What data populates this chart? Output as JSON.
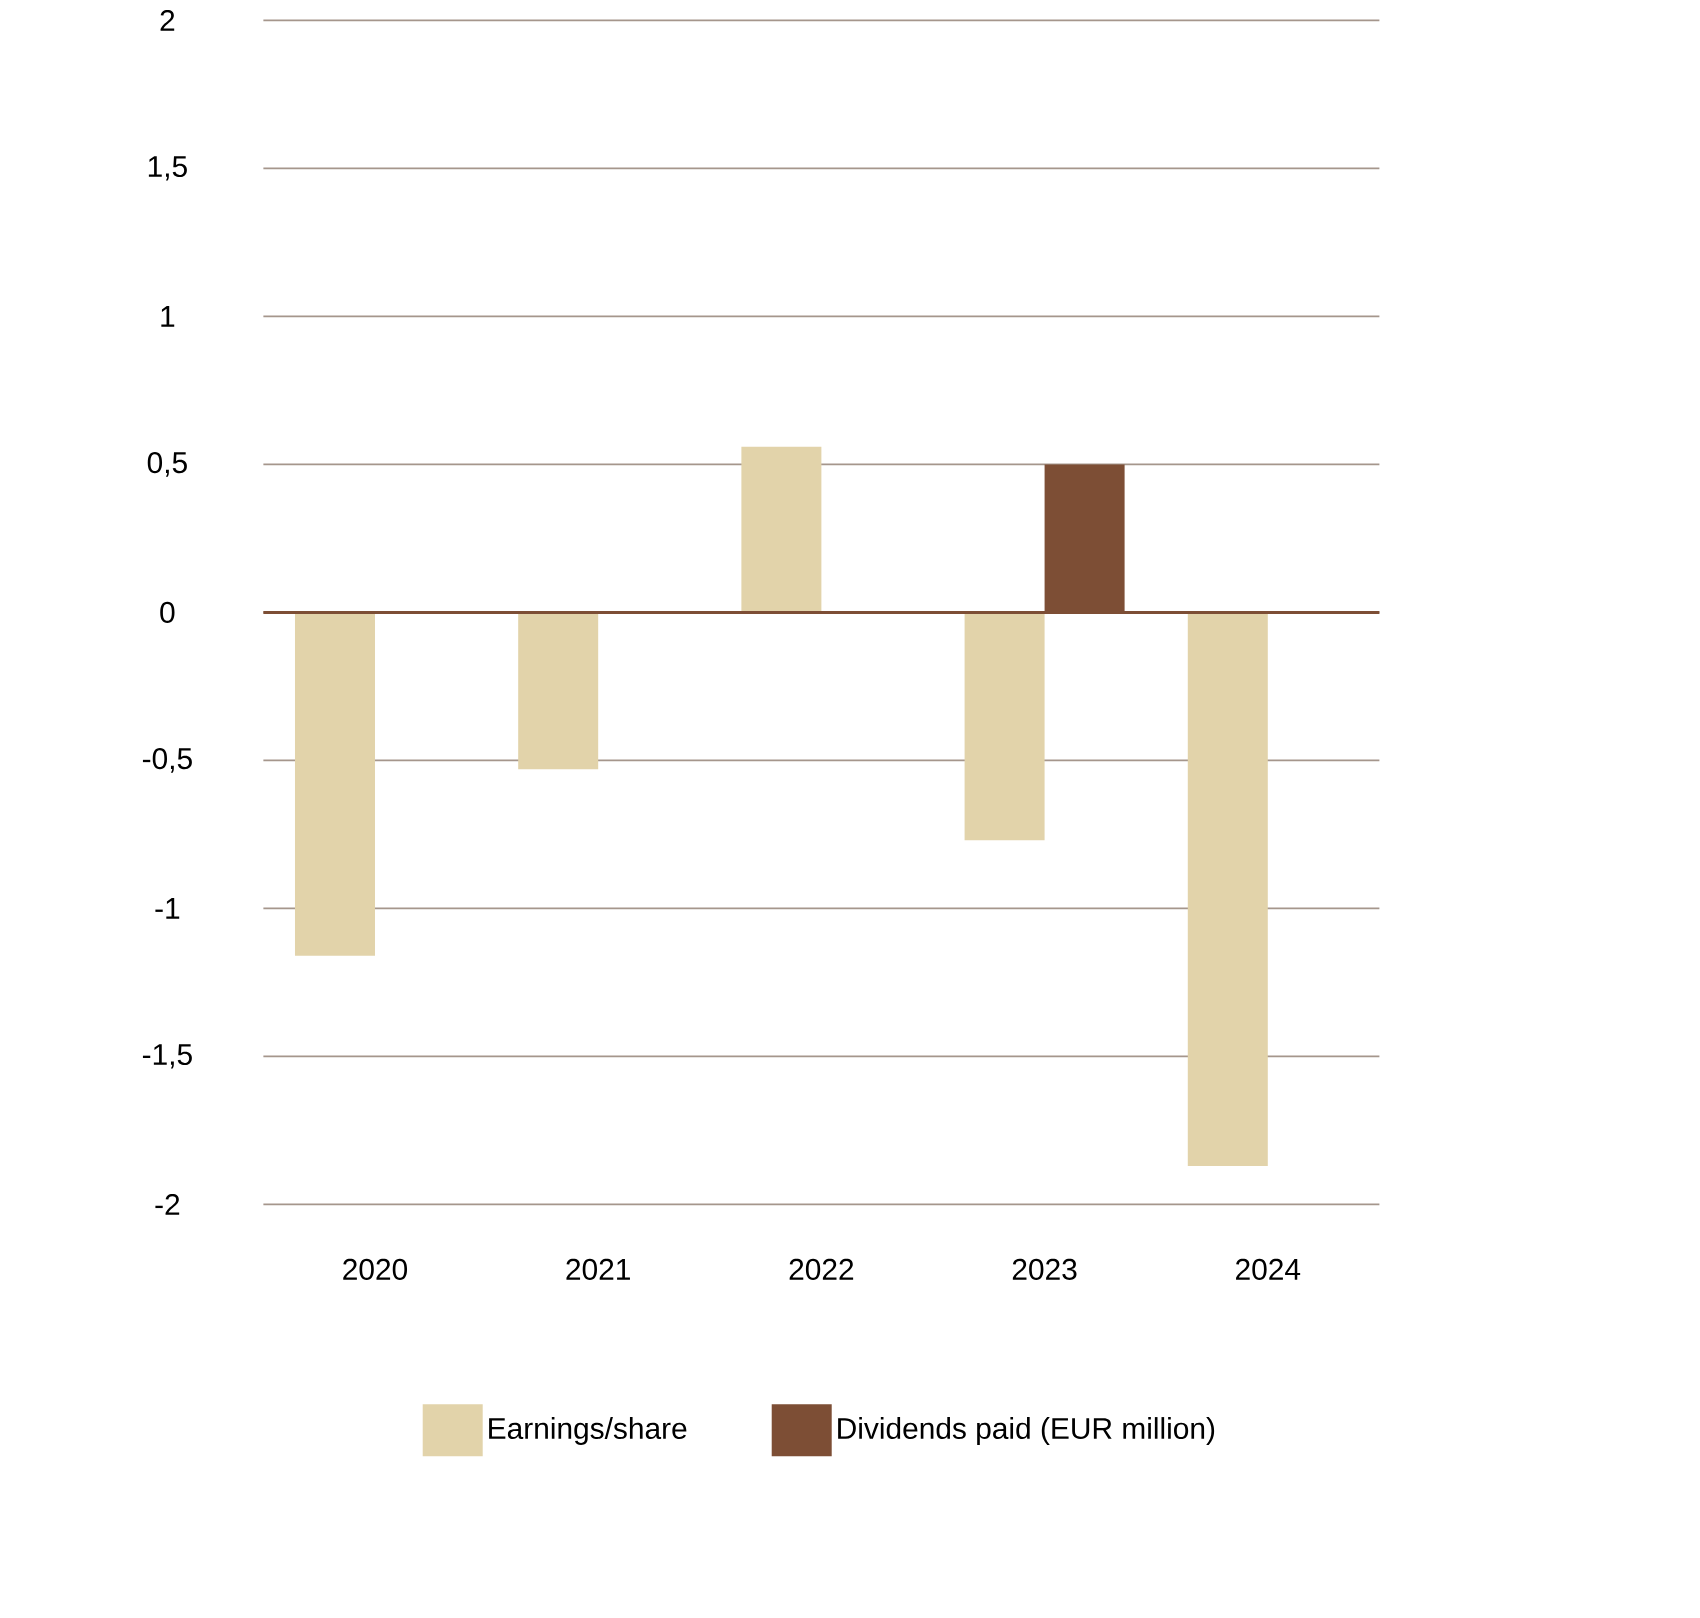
{
  "chart_data": {
    "type": "bar",
    "categories": [
      "2020",
      "2021",
      "2022",
      "2023",
      "2024"
    ],
    "series": [
      {
        "name": "Earnings/share",
        "color": "#e2d3aa",
        "values": [
          -1.16,
          -0.53,
          0.56,
          -0.77,
          -1.87
        ]
      },
      {
        "name": "Dividends paid (EUR million)",
        "color": "#7d4e35",
        "values": [
          null,
          null,
          null,
          0.5,
          null
        ]
      }
    ],
    "ylim": [
      -2,
      2
    ],
    "yticks": [
      {
        "value": -2,
        "label": "-2"
      },
      {
        "value": -1.5,
        "label": "-1,5"
      },
      {
        "value": -1,
        "label": "-1"
      },
      {
        "value": -0.5,
        "label": "-0,5"
      },
      {
        "value": 0,
        "label": "0"
      },
      {
        "value": 0.5,
        "label": "0,5"
      },
      {
        "value": 1,
        "label": "1"
      },
      {
        "value": 1.5,
        "label": "1,5"
      },
      {
        "value": 2,
        "label": "2"
      }
    ],
    "ref_lines": [
      {
        "axis": "y",
        "value": 0,
        "color": "#7d4e35"
      }
    ],
    "grid": "y",
    "legend": "bottom"
  }
}
